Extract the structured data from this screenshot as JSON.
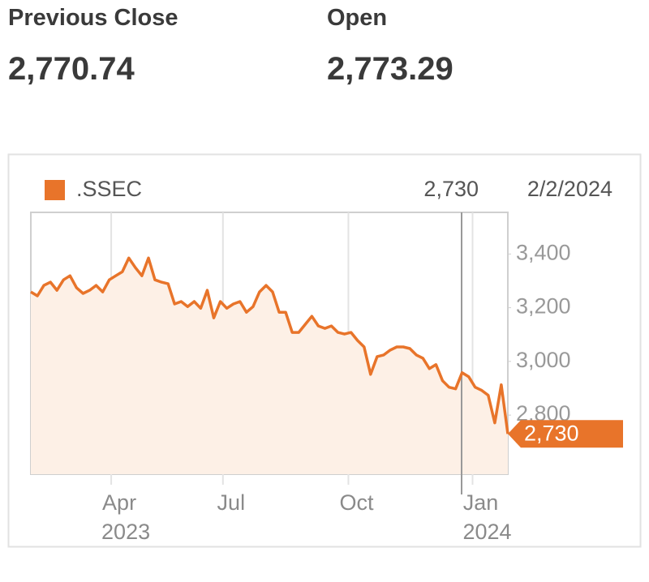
{
  "stats": [
    {
      "label": "Previous Close",
      "value": "2,770.74"
    },
    {
      "label": "Open",
      "value": "2,773.29"
    }
  ],
  "chart_data": {
    "type": "line",
    "series": [
      {
        "name": ".SSEC",
        "color": "#e8742a",
        "fill": "#fdf0e6",
        "values": [
          3259,
          3244,
          3283,
          3295,
          3265,
          3304,
          3319,
          3274,
          3253,
          3265,
          3283,
          3259,
          3304,
          3319,
          3334,
          3385,
          3349,
          3319,
          3385,
          3304,
          3295,
          3289,
          3214,
          3223,
          3204,
          3223,
          3198,
          3265,
          3162,
          3223,
          3198,
          3214,
          3223,
          3183,
          3204,
          3259,
          3283,
          3259,
          3183,
          3183,
          3108,
          3108,
          3138,
          3168,
          3132,
          3123,
          3132,
          3108,
          3102,
          3108,
          3078,
          3054,
          2952,
          3018,
          3024,
          3042,
          3054,
          3054,
          3048,
          3024,
          3012,
          2973,
          2988,
          2928,
          2904,
          2898,
          2958,
          2943,
          2904,
          2892,
          2874,
          2771,
          2913,
          2730
        ]
      }
    ],
    "categories": [
      null,
      null,
      null,
      null,
      null,
      null,
      null,
      null,
      null,
      null,
      null,
      null,
      null,
      null,
      null,
      null,
      null,
      null,
      null,
      null,
      null,
      null,
      null,
      null,
      null,
      null,
      null,
      null,
      null,
      null,
      null,
      null,
      null,
      null,
      null,
      null,
      null,
      null,
      null,
      null,
      null,
      null,
      null,
      null,
      null,
      null,
      null,
      null,
      null,
      null,
      null,
      null,
      null,
      null,
      null,
      null,
      null,
      null,
      null,
      null,
      null,
      null,
      null,
      null,
      null,
      null,
      null,
      null,
      null,
      null,
      null,
      null,
      null,
      null
    ],
    "last_value_label": "2,730",
    "last_date": "2/2/2024",
    "ylim": [
      2580,
      3555
    ],
    "yticks": [
      {
        "value": 2800,
        "label": "2,800"
      },
      {
        "value": 3000,
        "label": "3,000"
      },
      {
        "value": 3200,
        "label": "3,200"
      },
      {
        "value": 3400,
        "label": "3,400"
      }
    ],
    "xticks": [
      {
        "value": 12.3,
        "label": "Apr"
      },
      {
        "value": 29.4,
        "label": "Jul"
      },
      {
        "value": 48.6,
        "label": "Oct"
      },
      {
        "value": 67.6,
        "label": "Jan"
      }
    ],
    "xyears": [
      {
        "value": 12.3,
        "label": "2023"
      },
      {
        "value": 67.6,
        "label": "2024"
      }
    ],
    "grid": true
  }
}
